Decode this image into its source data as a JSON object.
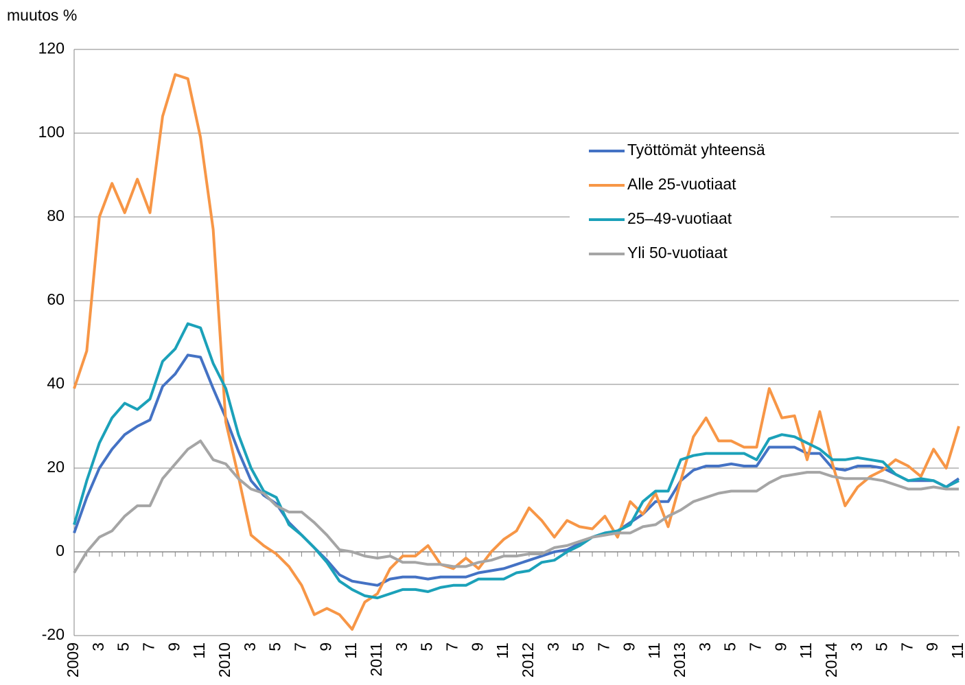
{
  "chart_data": {
    "type": "line",
    "ylabel": "muutos %",
    "categories": [
      "2009",
      null,
      "3",
      null,
      "5",
      null,
      "7",
      null,
      "9",
      null,
      "11",
      null,
      "2010",
      null,
      "3",
      null,
      "5",
      null,
      "7",
      null,
      "9",
      null,
      "11",
      null,
      "2011",
      null,
      "3",
      null,
      "5",
      null,
      "7",
      null,
      "9",
      null,
      "11",
      null,
      "2012",
      null,
      "3",
      null,
      "5",
      null,
      "7",
      null,
      "9",
      null,
      "11",
      null,
      "2013",
      null,
      "3",
      null,
      "5",
      null,
      "7",
      null,
      "9",
      null,
      "11",
      null,
      "2014",
      null,
      "3",
      null,
      "5",
      null,
      "7",
      null,
      "9",
      null,
      "11"
    ],
    "series": [
      {
        "name": "Työttömät yhteensä",
        "color": "#4472c4",
        "values": [
          4.5,
          13,
          20,
          24.5,
          28,
          30,
          31.5,
          39.5,
          42.5,
          47,
          46.5,
          39,
          32,
          24,
          17,
          13.5,
          11.5,
          7,
          4,
          1,
          -2,
          -5.5,
          -7,
          -7.5,
          -8,
          -6.5,
          -6,
          -6,
          -6.5,
          -6,
          -6,
          -6,
          -5,
          -4.5,
          -4,
          -3,
          -2,
          -1,
          0,
          0.5,
          2,
          3.5,
          4.5,
          5,
          7,
          9,
          12,
          12,
          17,
          19.5,
          20.5,
          20.5,
          21,
          20.5,
          20.5,
          25,
          25,
          25,
          23.5,
          23.5,
          20,
          19.5,
          20.5,
          20.5,
          20,
          18.5,
          17,
          17,
          17,
          15.5,
          17.5
        ]
      },
      {
        "name": "Alle 25-vuotiaat",
        "color": "#f79646",
        "values": [
          39,
          48,
          80,
          88,
          81,
          89,
          81,
          104,
          114,
          113,
          99,
          77,
          31,
          18,
          4,
          1.5,
          -0.5,
          -3.5,
          -8,
          -15,
          -13.5,
          -15,
          -18.5,
          -12,
          -10,
          -4,
          -1,
          -1,
          1.5,
          -3,
          -4,
          -1.5,
          -4,
          0,
          3,
          5,
          10.5,
          7.5,
          3.5,
          7.5,
          6,
          5.5,
          8.5,
          3.5,
          12,
          9,
          14,
          6,
          17,
          27.5,
          32,
          26.5,
          26.5,
          25,
          25,
          39,
          32,
          32.5,
          22,
          33.5,
          21,
          11,
          15.5,
          18,
          19.5,
          22,
          20.5,
          18,
          24.5,
          20,
          30
        ]
      },
      {
        "name": "25–49-vuotiaat",
        "color": "#1ba1b9",
        "values": [
          6.5,
          17,
          26,
          32,
          35.5,
          34,
          36.5,
          45.5,
          48.5,
          54.5,
          53.5,
          45,
          39,
          28,
          20,
          14.5,
          13,
          6.5,
          4,
          1,
          -2.5,
          -7,
          -9,
          -10.5,
          -11,
          -10,
          -9,
          -9,
          -9.5,
          -8.5,
          -8,
          -8,
          -6.5,
          -6.5,
          -6.5,
          -5,
          -4.5,
          -2.5,
          -2,
          0,
          1.5,
          3.5,
          4.5,
          5,
          6.5,
          12,
          14.5,
          14.5,
          22,
          23,
          23.5,
          23.5,
          23.5,
          23.5,
          22,
          27,
          28,
          27.5,
          26,
          24.5,
          22,
          22,
          22.5,
          22,
          21.5,
          18.5,
          17,
          17.5,
          17,
          15.5,
          17
        ]
      },
      {
        "name": "Yli 50-vuotiaat",
        "color": "#a5a5a5",
        "values": [
          -5,
          0,
          3.5,
          5,
          8.5,
          11,
          11,
          17.5,
          21,
          24.5,
          26.5,
          22,
          21,
          17.5,
          15,
          14,
          11,
          9.5,
          9.5,
          7,
          4,
          0.5,
          0,
          -1,
          -1.5,
          -1,
          -2.5,
          -2.5,
          -3,
          -3,
          -3.5,
          -3.5,
          -2.5,
          -2,
          -1,
          -1,
          -0.5,
          -0.5,
          1,
          1.5,
          2.5,
          3.5,
          4,
          4.5,
          4.5,
          6,
          6.5,
          8.5,
          10,
          12,
          13,
          14,
          14.5,
          14.5,
          14.5,
          16.5,
          18,
          18.5,
          19,
          19,
          18,
          17.5,
          17.5,
          17.5,
          17,
          16,
          15,
          15,
          15.5,
          15,
          15
        ]
      }
    ],
    "ylim": [
      -20,
      120
    ],
    "yticks": [
      -20,
      0,
      20,
      40,
      60,
      80,
      100,
      120
    ],
    "grid": true,
    "legend_position": "upper right"
  }
}
